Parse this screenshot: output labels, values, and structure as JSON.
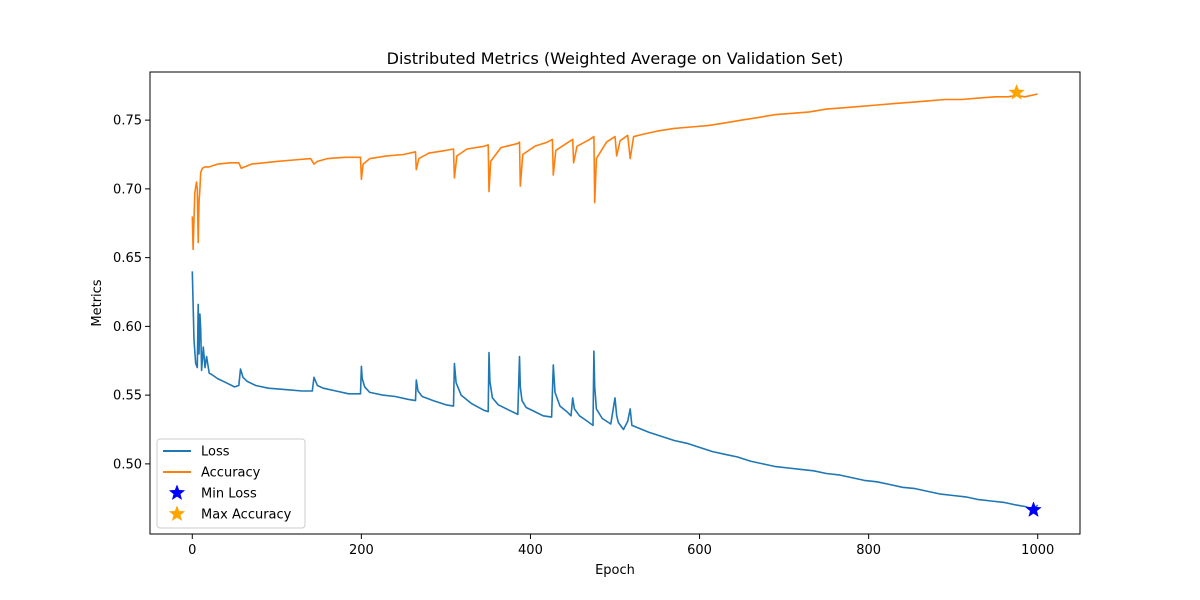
{
  "chart_data": {
    "type": "line",
    "title": "Distributed Metrics (Weighted Average on Validation Set)",
    "xlabel": "Epoch",
    "ylabel": "Metrics",
    "xlim": [
      -50,
      1050
    ],
    "ylim": [
      0.449,
      0.785
    ],
    "x_ticks": [
      0,
      200,
      400,
      600,
      800,
      1000
    ],
    "x_tick_labels": [
      "0",
      "200",
      "400",
      "600",
      "800",
      "1000"
    ],
    "y_ticks": [
      0.5,
      0.55,
      0.6,
      0.65,
      0.7,
      0.75
    ],
    "y_tick_labels": [
      "0.50",
      "0.55",
      "0.60",
      "0.65",
      "0.70",
      "0.75"
    ],
    "grid": false,
    "legend_position": "lower-left",
    "series": [
      {
        "name": "Loss",
        "color": "#1f77b4",
        "x": [
          0,
          2,
          4,
          6,
          7,
          8,
          9,
          10,
          11,
          13,
          15,
          17,
          20,
          23,
          30,
          40,
          50,
          55,
          57,
          60,
          65,
          75,
          90,
          110,
          130,
          142,
          144,
          148,
          155,
          170,
          185,
          199,
          200,
          201,
          204,
          210,
          225,
          240,
          255,
          264,
          265,
          267,
          272,
          285,
          300,
          309,
          310,
          312,
          318,
          330,
          345,
          350,
          351,
          352,
          355,
          362,
          375,
          385,
          387,
          388,
          390,
          395,
          405,
          415,
          425,
          427,
          429,
          435,
          443,
          448,
          450,
          452,
          458,
          465,
          474,
          475,
          476,
          478,
          485,
          495,
          500,
          502,
          504,
          510,
          515,
          518,
          520,
          528,
          540,
          555,
          570,
          585,
          600,
          615,
          630,
          645,
          660,
          675,
          690,
          705,
          720,
          735,
          750,
          765,
          780,
          795,
          810,
          825,
          840,
          855,
          870,
          885,
          900,
          915,
          930,
          945,
          960,
          975,
          985,
          990,
          995,
          1000
        ],
        "values": [
          0.64,
          0.59,
          0.573,
          0.57,
          0.616,
          0.58,
          0.609,
          0.598,
          0.568,
          0.585,
          0.57,
          0.578,
          0.566,
          0.565,
          0.562,
          0.559,
          0.556,
          0.557,
          0.569,
          0.563,
          0.56,
          0.557,
          0.555,
          0.554,
          0.553,
          0.553,
          0.563,
          0.557,
          0.555,
          0.553,
          0.551,
          0.551,
          0.571,
          0.562,
          0.556,
          0.552,
          0.55,
          0.549,
          0.547,
          0.546,
          0.561,
          0.553,
          0.549,
          0.546,
          0.543,
          0.542,
          0.573,
          0.559,
          0.55,
          0.544,
          0.539,
          0.538,
          0.581,
          0.56,
          0.548,
          0.543,
          0.539,
          0.536,
          0.578,
          0.556,
          0.546,
          0.541,
          0.538,
          0.535,
          0.534,
          0.572,
          0.552,
          0.542,
          0.538,
          0.535,
          0.548,
          0.54,
          0.535,
          0.532,
          0.528,
          0.582,
          0.556,
          0.54,
          0.533,
          0.529,
          0.548,
          0.535,
          0.53,
          0.525,
          0.531,
          0.54,
          0.528,
          0.526,
          0.523,
          0.52,
          0.517,
          0.515,
          0.512,
          0.509,
          0.507,
          0.505,
          0.502,
          0.5,
          0.498,
          0.497,
          0.496,
          0.495,
          0.493,
          0.492,
          0.49,
          0.488,
          0.487,
          0.485,
          0.483,
          0.482,
          0.48,
          0.478,
          0.477,
          0.476,
          0.474,
          0.473,
          0.472,
          0.47,
          0.469,
          0.468,
          0.467,
          0.47
        ]
      },
      {
        "name": "Accuracy",
        "color": "#ff7f0e",
        "x": [
          0,
          1,
          3,
          5,
          6,
          7,
          8,
          9,
          10,
          12,
          15,
          20,
          30,
          45,
          55,
          58,
          62,
          70,
          85,
          100,
          120,
          140,
          144,
          148,
          160,
          180,
          199,
          200,
          202,
          210,
          230,
          250,
          264,
          265,
          268,
          280,
          300,
          309,
          310,
          313,
          325,
          345,
          350,
          351,
          353,
          365,
          385,
          387,
          388,
          391,
          405,
          420,
          426,
          427,
          430,
          445,
          450,
          451,
          455,
          470,
          475,
          476,
          478,
          490,
          500,
          502,
          506,
          515,
          518,
          522,
          535,
          550,
          570,
          590,
          610,
          630,
          650,
          670,
          690,
          710,
          730,
          750,
          770,
          790,
          810,
          830,
          850,
          870,
          890,
          910,
          930,
          950,
          965,
          975,
          985,
          1000
        ],
        "values": [
          0.68,
          0.656,
          0.697,
          0.705,
          0.7,
          0.661,
          0.69,
          0.7,
          0.712,
          0.715,
          0.716,
          0.716,
          0.718,
          0.719,
          0.719,
          0.715,
          0.716,
          0.718,
          0.719,
          0.72,
          0.721,
          0.722,
          0.718,
          0.72,
          0.722,
          0.723,
          0.723,
          0.707,
          0.718,
          0.722,
          0.724,
          0.725,
          0.727,
          0.714,
          0.722,
          0.726,
          0.728,
          0.729,
          0.708,
          0.724,
          0.729,
          0.731,
          0.732,
          0.698,
          0.72,
          0.73,
          0.733,
          0.734,
          0.702,
          0.725,
          0.731,
          0.734,
          0.736,
          0.71,
          0.728,
          0.734,
          0.736,
          0.719,
          0.731,
          0.736,
          0.738,
          0.69,
          0.722,
          0.734,
          0.738,
          0.724,
          0.735,
          0.739,
          0.722,
          0.738,
          0.74,
          0.742,
          0.744,
          0.745,
          0.746,
          0.748,
          0.75,
          0.752,
          0.754,
          0.755,
          0.756,
          0.758,
          0.759,
          0.76,
          0.761,
          0.762,
          0.763,
          0.764,
          0.765,
          0.765,
          0.766,
          0.767,
          0.767,
          0.768,
          0.767,
          0.769
        ]
      }
    ],
    "markers": [
      {
        "name": "Min Loss",
        "color": "#0000ff",
        "shape": "star",
        "x": 995,
        "y": 0.4665
      },
      {
        "name": "Max Accuracy",
        "color": "#ffa500",
        "shape": "star",
        "x": 975,
        "y": 0.77
      }
    ]
  }
}
